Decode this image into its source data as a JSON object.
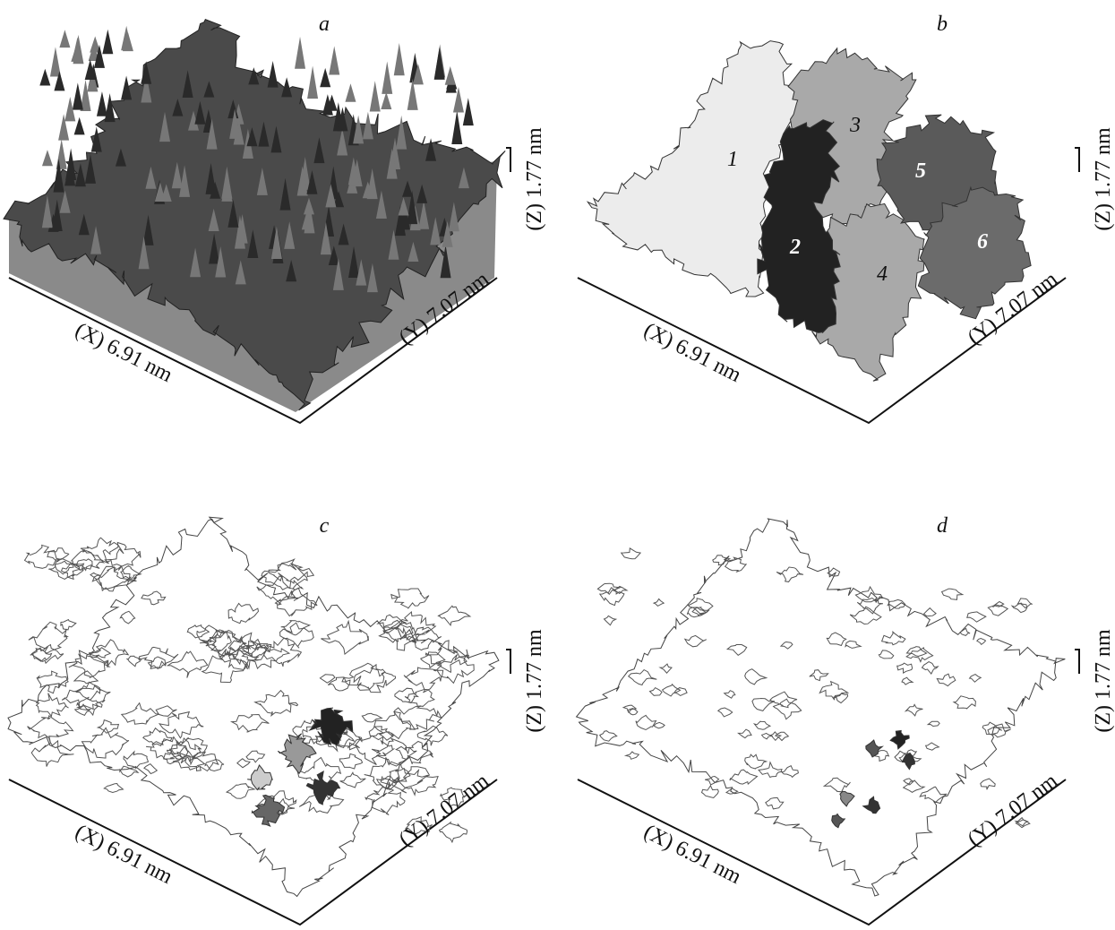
{
  "panels": [
    {
      "label": "a",
      "x_axis": "(X) 6.91 nm",
      "y_axis": "(Y) 7.07 nm",
      "z_axis": "(Z) 1.77 nm"
    },
    {
      "label": "b",
      "x_axis": "(X) 6.91 nm",
      "y_axis": "(Y) 7.07 nm",
      "z_axis": "(Z) 1.77 nm",
      "region_labels": [
        "1",
        "2",
        "3",
        "4",
        "5",
        "6"
      ]
    },
    {
      "label": "c",
      "x_axis": "(X) 6.91 nm",
      "y_axis": "(Y) 7.07 nm",
      "z_axis": "(Z) 1.77 nm"
    },
    {
      "label": "d",
      "x_axis": "(X) 6.91 nm",
      "y_axis": "(Y) 7.07 nm",
      "z_axis": "(Z) 1.77 nm"
    }
  ]
}
